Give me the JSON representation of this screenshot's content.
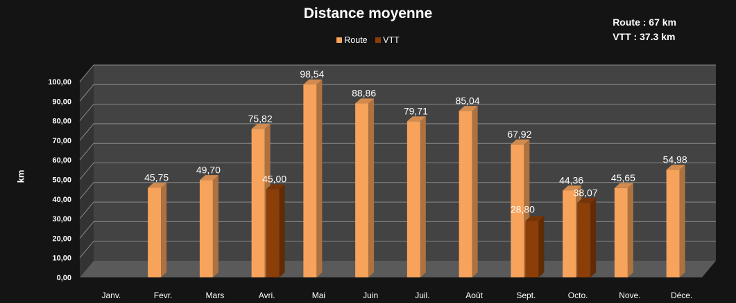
{
  "header": {
    "route_label": "Route :",
    "route_value": "67 km",
    "vtt_label": "VTT :",
    "vtt_value": "37.3 km"
  },
  "chart_data": {
    "type": "bar",
    "title": "Distance moyenne",
    "ylabel": "km",
    "xlabel": "",
    "ylim": [
      0,
      100
    ],
    "y_ticks": [
      "0,00",
      "10,00",
      "20,00",
      "30,00",
      "40,00",
      "50,00",
      "60,00",
      "70,00",
      "80,00",
      "90,00",
      "100,00"
    ],
    "categories": [
      "Janv.",
      "Fevr.",
      "Mars",
      "Avri.",
      "Mai",
      "Juin",
      "Juil.",
      "Août",
      "Sept.",
      "Octo.",
      "Nove.",
      "Déce."
    ],
    "series": [
      {
        "name": "Route",
        "color": "#F7A35C",
        "values": [
          null,
          45.75,
          49.7,
          75.82,
          98.54,
          88.86,
          79.71,
          85.04,
          67.92,
          44.36,
          45.65,
          54.98
        ],
        "labels": [
          "",
          "45,75",
          "49,70",
          "75,82",
          "98,54",
          "88,86",
          "79,71",
          "85,04",
          "67,92",
          "44,36",
          "45,65",
          "54,98"
        ]
      },
      {
        "name": "VTT",
        "color": "#8B3E08",
        "values": [
          null,
          null,
          null,
          45.0,
          null,
          null,
          null,
          null,
          28.8,
          38.07,
          null,
          null
        ],
        "labels": [
          "",
          "",
          "",
          "45,00",
          "",
          "",
          "",
          "",
          "28,80",
          "38,07",
          "",
          ""
        ]
      }
    ],
    "grid": true,
    "legend_position": "top-center",
    "style": "3d-column"
  }
}
